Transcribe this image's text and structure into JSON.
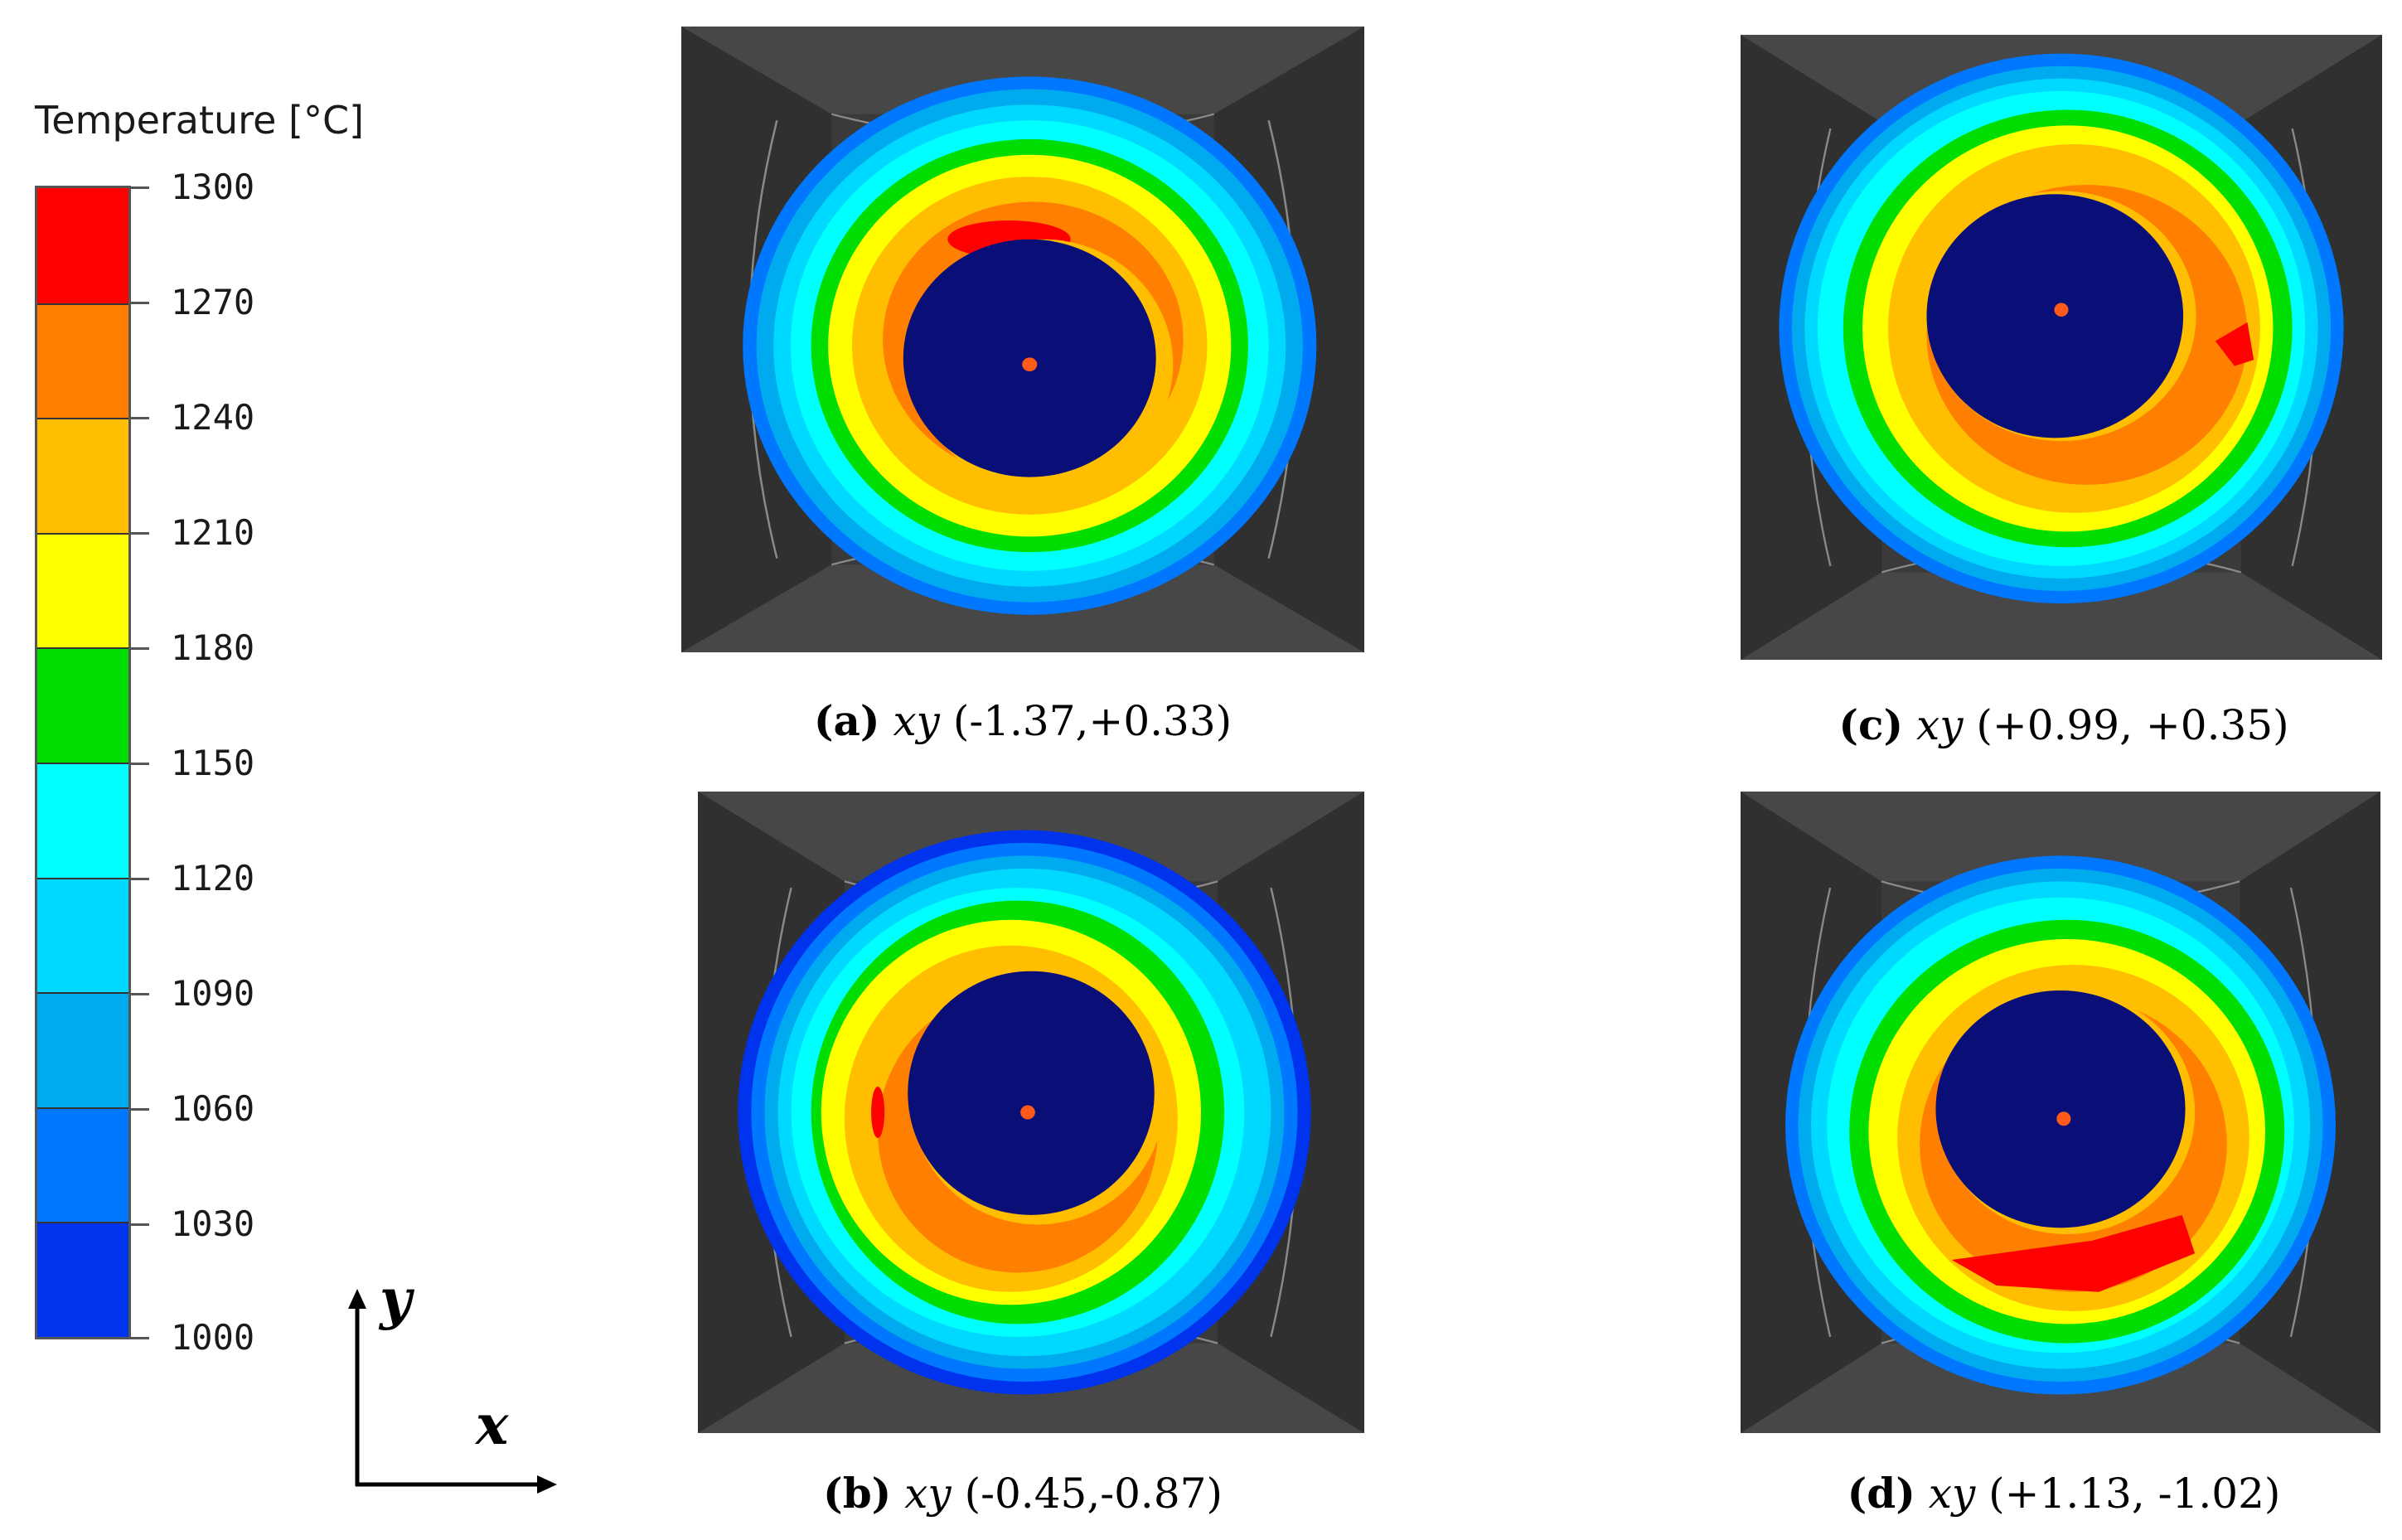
{
  "legend": {
    "title": "Temperature [°C]",
    "unit": "°C",
    "levels": [
      "1300",
      "1270",
      "1240",
      "1210",
      "1180",
      "1150",
      "1120",
      "1090",
      "1060",
      "1030",
      "1000"
    ],
    "band_colors": [
      "#ff0000",
      "#ff7f00",
      "#ffbf00",
      "#ffff00",
      "#00dd00",
      "#00ffff",
      "#00d9ff",
      "#00aaee",
      "#0077ff",
      "#0033ee"
    ]
  },
  "axis": {
    "y_label": "y",
    "x_label": "x"
  },
  "panels": [
    {
      "id": "a",
      "tag": "(a)",
      "axes": "xy",
      "coords": "(-1.37,+0.33)"
    },
    {
      "id": "b",
      "tag": "(b)",
      "axes": "xy",
      "coords": "(-0.45,-0.87)"
    },
    {
      "id": "c",
      "tag": "(c)",
      "axes": "xy",
      "coords": "(+0.99, +0.35)"
    },
    {
      "id": "d",
      "tag": "(d)",
      "axes": "xy",
      "coords": "(+1.13, -1.02)"
    }
  ],
  "colors": {
    "mold_dark": "#3a3a3a",
    "mold_light": "#4c4c4c",
    "core": "#0a0f78",
    "core_center": "#ff5a1a"
  }
}
